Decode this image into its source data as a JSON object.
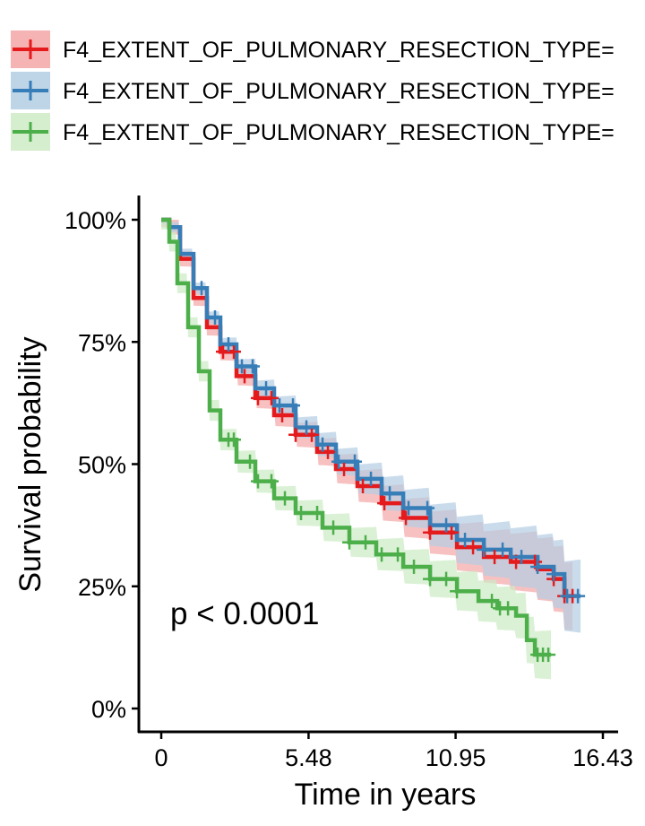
{
  "chart_data": {
    "type": "line",
    "title": "",
    "xlabel": "Time in years",
    "ylabel": "Survival probability",
    "xlim": [
      -0.7,
      17.3
    ],
    "ylim": [
      -0.05,
      1.05
    ],
    "x_ticks": [
      0,
      5.48,
      10.95,
      16.43
    ],
    "x_tick_labels": [
      "0",
      "5.48",
      "10.95",
      "16.43"
    ],
    "y_ticks": [
      0,
      0.25,
      0.5,
      0.75,
      1.0
    ],
    "y_tick_labels": [
      "0%",
      "25%",
      "50%",
      "75%",
      "100%"
    ],
    "annotation": "p <  0.0001",
    "legend_position": "top",
    "series": [
      {
        "name": "F4_EXTENT_OF_PULMONARY_RESECTION_TYPE=",
        "color": "#E41A1C",
        "fill": "#F4A6A7",
        "points": [
          [
            0,
            1.0
          ],
          [
            0.05,
            1.0
          ],
          [
            0.3,
            0.985
          ],
          [
            0.7,
            0.92
          ],
          [
            1.2,
            0.84
          ],
          [
            1.7,
            0.78
          ],
          [
            2.2,
            0.73
          ],
          [
            2.8,
            0.68
          ],
          [
            3.5,
            0.635
          ],
          [
            4.2,
            0.6
          ],
          [
            5.0,
            0.56
          ],
          [
            5.8,
            0.525
          ],
          [
            6.5,
            0.49
          ],
          [
            7.3,
            0.455
          ],
          [
            8.2,
            0.42
          ],
          [
            9.0,
            0.39
          ],
          [
            10.0,
            0.36
          ],
          [
            11.0,
            0.33
          ],
          [
            12.0,
            0.31
          ],
          [
            13.0,
            0.3
          ],
          [
            14.0,
            0.285
          ],
          [
            14.6,
            0.265
          ],
          [
            15.0,
            0.23
          ],
          [
            15.3,
            0.23
          ]
        ],
        "band": [
          0.015,
          0.07
        ],
        "censor_x": [
          2.3,
          2.7,
          3.1,
          3.6,
          4.1,
          4.5,
          5.0,
          5.6,
          6.2,
          6.8,
          7.5,
          8.3,
          9.1,
          10.0,
          10.8,
          11.6,
          12.4,
          13.2,
          13.9,
          14.6,
          15.0,
          15.3
        ]
      },
      {
        "name": "F4_EXTENT_OF_PULMONARY_RESECTION_TYPE=",
        "color": "#377EB8",
        "fill": "#B3CDE3",
        "points": [
          [
            0,
            1.0
          ],
          [
            0.05,
            1.0
          ],
          [
            0.3,
            0.985
          ],
          [
            0.7,
            0.93
          ],
          [
            1.2,
            0.86
          ],
          [
            1.7,
            0.8
          ],
          [
            2.2,
            0.745
          ],
          [
            2.8,
            0.7
          ],
          [
            3.5,
            0.655
          ],
          [
            4.2,
            0.62
          ],
          [
            5.0,
            0.575
          ],
          [
            5.8,
            0.54
          ],
          [
            6.5,
            0.505
          ],
          [
            7.3,
            0.47
          ],
          [
            8.2,
            0.44
          ],
          [
            9.0,
            0.41
          ],
          [
            10.0,
            0.375
          ],
          [
            11.0,
            0.345
          ],
          [
            12.0,
            0.325
          ],
          [
            13.0,
            0.31
          ],
          [
            14.0,
            0.29
          ],
          [
            14.6,
            0.275
          ],
          [
            15.0,
            0.23
          ],
          [
            15.6,
            0.23
          ]
        ],
        "band": [
          0.01,
          0.075
        ],
        "censor_x": [
          1.5,
          2.0,
          2.5,
          3.0,
          3.4,
          3.9,
          4.4,
          4.9,
          5.4,
          6.0,
          6.6,
          7.2,
          7.8,
          8.5,
          9.2,
          9.9,
          10.6,
          11.3,
          12.0,
          12.7,
          13.4,
          14.0,
          14.6,
          15.1,
          15.5
        ]
      },
      {
        "name": "F4_EXTENT_OF_PULMONARY_RESECTION_TYPE=",
        "color": "#4DAF4A",
        "fill": "#CCEBC5",
        "points": [
          [
            0,
            1.0
          ],
          [
            0.05,
            1.0
          ],
          [
            0.3,
            0.955
          ],
          [
            0.6,
            0.87
          ],
          [
            1.0,
            0.78
          ],
          [
            1.4,
            0.69
          ],
          [
            1.8,
            0.61
          ],
          [
            2.2,
            0.55
          ],
          [
            2.8,
            0.505
          ],
          [
            3.5,
            0.465
          ],
          [
            4.2,
            0.43
          ],
          [
            5.0,
            0.4
          ],
          [
            6.0,
            0.37
          ],
          [
            7.0,
            0.34
          ],
          [
            8.0,
            0.315
          ],
          [
            9.0,
            0.29
          ],
          [
            10.0,
            0.265
          ],
          [
            11.0,
            0.24
          ],
          [
            11.8,
            0.22
          ],
          [
            12.5,
            0.205
          ],
          [
            13.2,
            0.19
          ],
          [
            13.6,
            0.14
          ],
          [
            13.9,
            0.11
          ],
          [
            14.5,
            0.11
          ]
        ],
        "band": [
          0.02,
          0.05
        ],
        "censor_x": [
          2.5,
          2.7,
          3.3,
          3.6,
          4.1,
          4.6,
          5.2,
          5.8,
          6.4,
          7.0,
          7.6,
          8.2,
          8.8,
          9.4,
          10.0,
          10.6,
          11.0,
          12.3,
          12.6,
          12.9,
          14.0,
          14.2,
          14.4
        ]
      }
    ]
  }
}
